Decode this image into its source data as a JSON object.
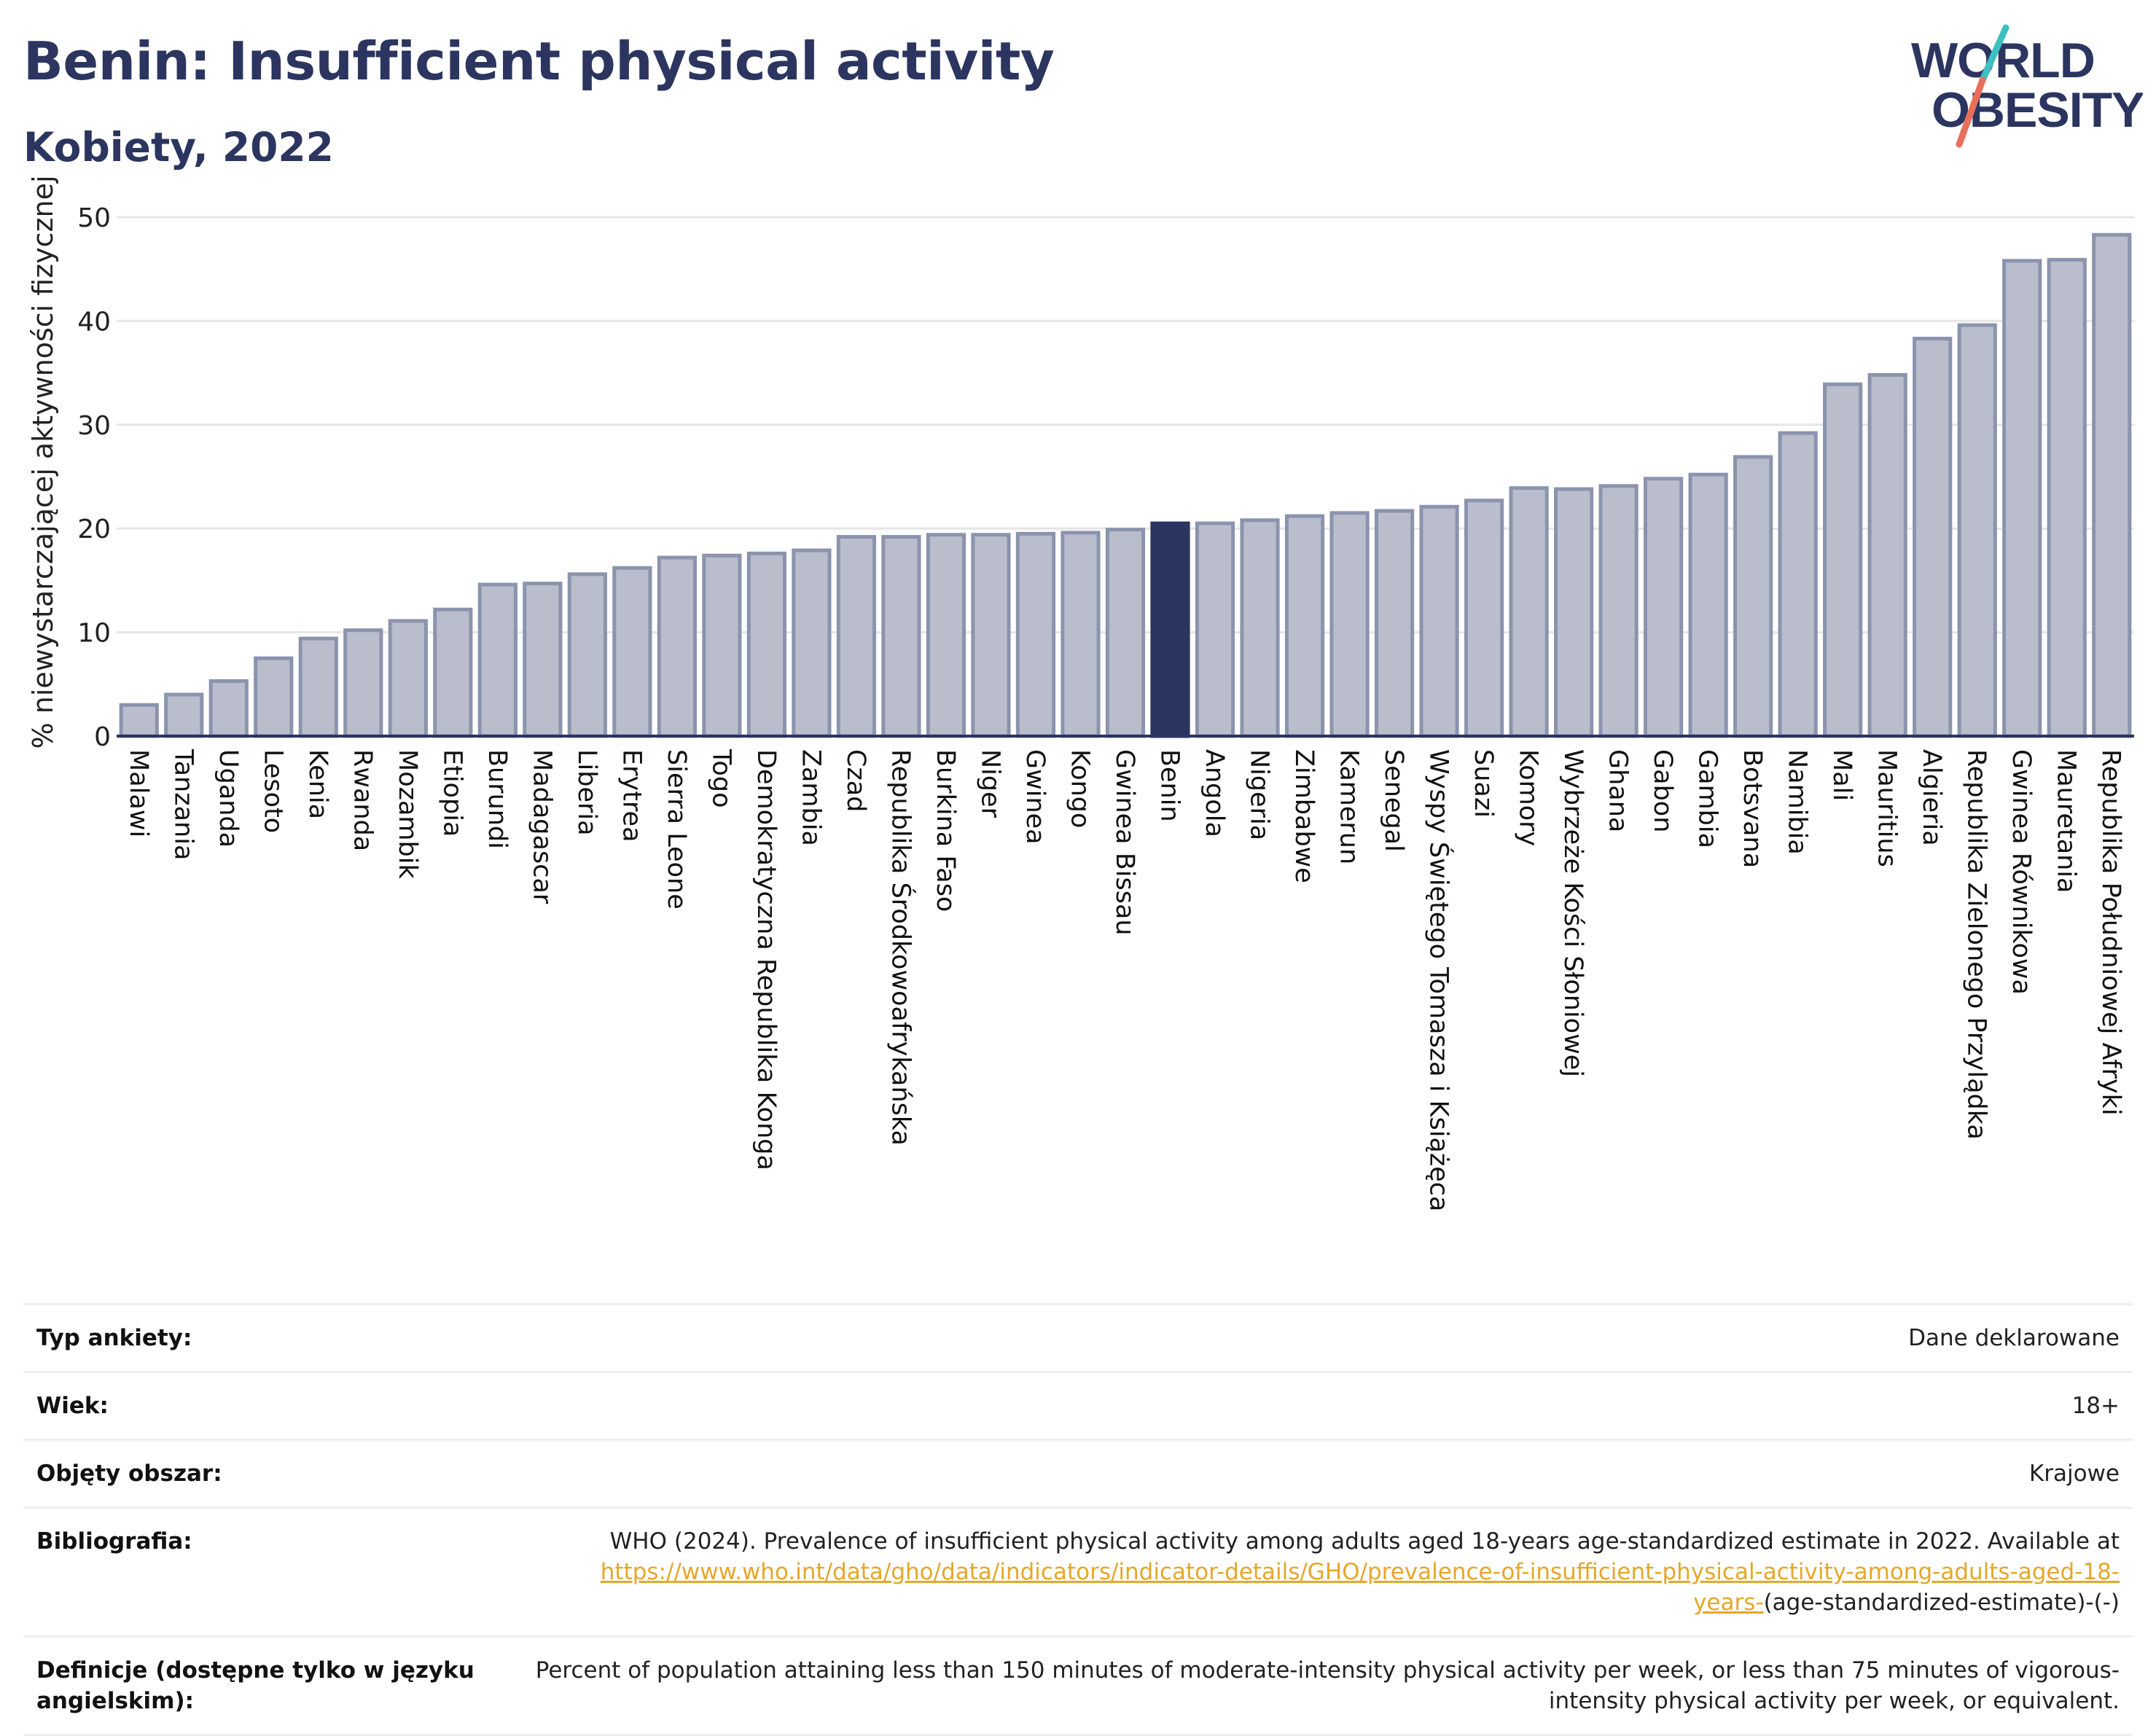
{
  "header": {
    "title": "Benin: Insufficient physical activity",
    "subtitle": "Kobiety, 2022"
  },
  "logo": {
    "line1": "WORLD",
    "line2": "OBESITY",
    "slash_colors": [
      "#3fbfbf",
      "#e8705a"
    ]
  },
  "colors": {
    "bar": "#b9bdcc",
    "bar_stroke": "#8c93ad",
    "highlight": "#2b3560",
    "grid": "#e6e6e6",
    "text": "#2b3560"
  },
  "chart_data": {
    "type": "bar",
    "ylabel": "% niewystarczającej aktywności fizycznej",
    "ylim": [
      0,
      50
    ],
    "yticks": [
      0,
      10,
      20,
      30,
      40,
      50
    ],
    "grid": true,
    "highlight": "Benin",
    "categories": [
      "Malawi",
      "Tanzania",
      "Uganda",
      "Lesoto",
      "Kenia",
      "Rwanda",
      "Mozambik",
      "Etiopia",
      "Burundi",
      "Madagascar",
      "Liberia",
      "Erytrea",
      "Sierra Leone",
      "Togo",
      "Demokratyczna Republika Konga",
      "Zambia",
      "Czad",
      "Republika Środkowoafrykańska",
      "Burkina Faso",
      "Niger",
      "Gwinea",
      "Kongo",
      "Gwinea Bissau",
      "Benin",
      "Angola",
      "Nigeria",
      "Zimbabwe",
      "Kamerun",
      "Senegal",
      "Wyspy Świętego Tomasza i Książęca",
      "Suazi",
      "Komory",
      "Wybrzeże Kości Słoniowej",
      "Ghana",
      "Gabon",
      "Gambia",
      "Botsvana",
      "Namibia",
      "Mali",
      "Mauritius",
      "Algieria",
      "Republika Zielonego Przylądka",
      "Gwinea Równikowa",
      "Mauretania",
      "Republika Południowej Afryki"
    ],
    "values": [
      3.0,
      4.0,
      5.3,
      7.5,
      9.4,
      10.2,
      11.1,
      12.2,
      14.6,
      14.7,
      15.6,
      16.2,
      17.2,
      17.4,
      17.6,
      17.9,
      19.2,
      19.2,
      19.4,
      19.4,
      19.5,
      19.6,
      19.9,
      20.5,
      20.5,
      20.8,
      21.2,
      21.5,
      21.7,
      22.1,
      22.7,
      23.9,
      23.8,
      24.1,
      24.8,
      25.2,
      26.9,
      29.2,
      33.9,
      34.8,
      38.3,
      39.6,
      45.8,
      45.9,
      48.3
    ]
  },
  "meta": [
    {
      "label": "Typ ankiety:",
      "value": "Dane deklarowane"
    },
    {
      "label": "Wiek:",
      "value": "18+"
    },
    {
      "label": "Objęty obszar:",
      "value": "Krajowe"
    },
    {
      "label": "Bibliografia:",
      "value": "WHO (2024). Prevalence of insufficient physical activity among adults aged 18-years age-standardized estimate in 2022. Available at",
      "link": "https://www.who.int/data/gho/data/indicators/indicator-details/GHO/prevalence-of-insufficient-physical-activity-among-adults-aged-18-years-",
      "suffix": "(age-standardized-estimate)-(-)"
    },
    {
      "label": "Definicje (dostępne tylko w języku angielskim):",
      "value": "Percent of population attaining less than 150 minutes of moderate-intensity physical activity per week, or less than 75 minutes of vigorous-intensity physical activity per week, or equivalent."
    }
  ]
}
